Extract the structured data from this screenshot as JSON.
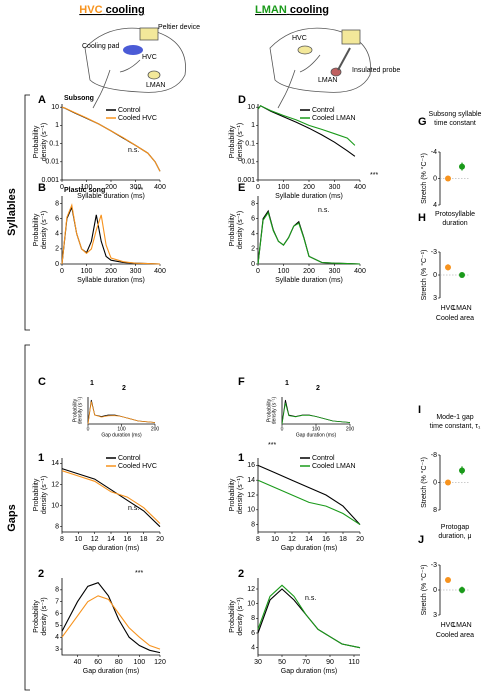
{
  "header": {
    "hvc_title": {
      "area": "HVC",
      "word": "cooling"
    },
    "lman_title": {
      "area": "LMAN",
      "word": "cooling"
    }
  },
  "diagrams": {
    "left": [
      "Cooling pad",
      "Peltier device",
      "HVC",
      "LMAN"
    ],
    "right": [
      "HVC",
      "LMAN",
      "Insulated probe"
    ]
  },
  "sections": [
    "Syllables",
    "Gaps"
  ],
  "chart_data": [
    {
      "type": "line",
      "panel_label": "A",
      "title": "Subsong",
      "xlabel": "Syllable duration (ms)",
      "ylabel": [
        "Probability",
        "density (s⁻¹)"
      ],
      "log_y": true,
      "x": [
        0,
        10,
        50,
        100,
        150,
        200,
        250,
        300,
        350,
        380,
        400
      ],
      "series": [
        {
          "name": "Control",
          "color": "#000000",
          "values": [
            10,
            9,
            5,
            2.5,
            1.2,
            0.5,
            0.2,
            0.08,
            0.03,
            0.01,
            0.003
          ]
        },
        {
          "name": "Cooled HVC",
          "color": "#f7931e",
          "values": [
            10,
            9.2,
            5.2,
            2.6,
            1.2,
            0.5,
            0.21,
            0.08,
            0.03,
            0.01,
            0.003
          ]
        }
      ],
      "xlim": [
        0,
        400
      ],
      "ylim": [
        0.001,
        15
      ],
      "xticks": [
        0,
        100,
        200,
        300,
        400
      ],
      "yticks": [
        10,
        1,
        0.1,
        0.01,
        0.001
      ],
      "annotations": [
        "n.s."
      ]
    },
    {
      "type": "line",
      "panel_label": "B",
      "title": "Plastic song",
      "xlabel": "Syllable duration (ms)",
      "ylabel": [
        "Probability",
        "density (s⁻¹)"
      ],
      "x": [
        0,
        20,
        40,
        60,
        80,
        100,
        120,
        140,
        160,
        180,
        200,
        250,
        300,
        350,
        400
      ],
      "series": [
        {
          "color": "#000000",
          "values": [
            0,
            6,
            7.5,
            4,
            2,
            1.5,
            3,
            6.5,
            3,
            1,
            0.5,
            0.2,
            0.1,
            0.05,
            0
          ]
        },
        {
          "color": "#f7931e",
          "values": [
            0,
            6.2,
            7.8,
            4,
            2,
            1.4,
            2,
            4.5,
            6.5,
            2.5,
            0.8,
            0.3,
            0.1,
            0.05,
            0
          ]
        }
      ],
      "xlim": [
        0,
        400
      ],
      "ylim": [
        0,
        9
      ],
      "xticks": [
        0,
        100,
        200,
        300,
        400
      ],
      "yticks": [
        0,
        2,
        4,
        6,
        8
      ],
      "annotations": [
        "***"
      ]
    },
    {
      "type": "line",
      "panel_label": "D",
      "xlabel": "Syllable duration (ms)",
      "ylabel": [
        "Probability",
        "density (s⁻¹)"
      ],
      "log_y": true,
      "x": [
        0,
        10,
        50,
        100,
        150,
        200,
        250,
        300,
        350,
        380
      ],
      "series": [
        {
          "name": "Control",
          "color": "#000000",
          "values": [
            8,
            12,
            6,
            3,
            1.5,
            0.7,
            0.3,
            0.12,
            0.04,
            0.02
          ]
        },
        {
          "name": "Cooled LMAN",
          "color": "#1a9a1a",
          "values": [
            8,
            12,
            6.5,
            3.5,
            2,
            1,
            0.6,
            0.35,
            0.2,
            0.08
          ]
        }
      ],
      "xlim": [
        0,
        400
      ],
      "ylim": [
        0.001,
        15
      ],
      "xticks": [
        0,
        100,
        200,
        300,
        400
      ],
      "yticks": [
        10,
        1,
        0.1,
        0.01,
        0.001
      ],
      "annotations": [
        "***"
      ]
    },
    {
      "type": "line",
      "panel_label": "E",
      "xlabel": "Syllable duration (ms)",
      "ylabel": [
        "Probability",
        "density (s⁻¹)"
      ],
      "x": [
        0,
        20,
        40,
        60,
        80,
        100,
        120,
        140,
        160,
        180,
        200,
        250,
        300,
        350,
        400
      ],
      "series": [
        {
          "color": "#000000",
          "values": [
            0,
            6,
            7,
            4.5,
            3,
            2.5,
            3.5,
            5,
            5.6,
            3.5,
            1,
            0.2,
            0.1,
            0.05,
            0
          ]
        },
        {
          "color": "#1a9a1a",
          "values": [
            0,
            5.8,
            6.8,
            4.4,
            3,
            2.5,
            3.5,
            5,
            5.4,
            3.4,
            1,
            0.2,
            0.1,
            0.05,
            0
          ]
        }
      ],
      "xlim": [
        0,
        400
      ],
      "ylim": [
        0,
        9
      ],
      "xticks": [
        0,
        100,
        200,
        300,
        400
      ],
      "yticks": [
        0,
        2,
        4,
        6,
        8
      ],
      "annotations": [
        "n.s."
      ]
    },
    {
      "type": "strip",
      "panel_label": "G",
      "title": [
        "Subsong syllable",
        "time constant"
      ],
      "ylabel": "Stretch (% °C⁻¹)",
      "categories": [
        null,
        null
      ],
      "colors": [
        "#f7931e",
        "#1a9a1a"
      ],
      "values": [
        0,
        -1.8
      ],
      "errors": [
        0.2,
        0.6
      ],
      "ylim": [
        4,
        -4
      ],
      "yticks": [
        -4,
        0,
        4
      ]
    },
    {
      "type": "strip",
      "panel_label": "H",
      "title": [
        "Protosyllable",
        "duration"
      ],
      "ylabel": "Stretch (% °C⁻¹)",
      "xlabel": "Cooled area",
      "categories": [
        "HVC",
        "LMAN"
      ],
      "colors": [
        "#f7931e",
        "#1a9a1a"
      ],
      "values": [
        -1.0,
        0
      ],
      "errors": [
        0.4,
        0.15
      ],
      "ylim": [
        3,
        -3
      ],
      "yticks": [
        -3,
        0,
        3
      ]
    },
    {
      "type": "line",
      "panel_label": "C",
      "xlabel": "Gap duration (ms)",
      "ylabel": [
        "Probability",
        "density (s⁻¹)"
      ],
      "inset": true,
      "x": [
        0,
        10,
        20,
        40,
        60,
        80,
        100,
        150,
        200
      ],
      "series": [
        {
          "color": "#000000",
          "values": [
            0,
            8,
            3,
            2.5,
            3,
            3,
            2.5,
            1,
            0.5
          ]
        },
        {
          "color": "#f7931e",
          "values": [
            0,
            7.5,
            3,
            2.3,
            2.7,
            2.8,
            2.5,
            1,
            0.5
          ]
        }
      ],
      "xlim": [
        0,
        200
      ],
      "ylim": [
        0,
        9
      ],
      "xticks": [
        0,
        100,
        200
      ],
      "yticks": [],
      "annotations": [
        "1",
        "2"
      ]
    },
    {
      "type": "line",
      "panel_label": "1",
      "xlabel": "Gap duration (ms)",
      "ylabel": [
        "Probability",
        "density (s⁻¹)"
      ],
      "x": [
        8,
        10,
        12,
        14,
        16,
        18,
        20
      ],
      "series": [
        {
          "name": "Control",
          "color": "#000000",
          "values": [
            13.5,
            13,
            12.5,
            11.5,
            10.5,
            9.5,
            8
          ]
        },
        {
          "name": "Cooled HVC",
          "color": "#f7931e",
          "values": [
            13.3,
            12.8,
            12.3,
            11.3,
            10.8,
            9.8,
            8.3
          ]
        }
      ],
      "xlim": [
        8,
        20
      ],
      "ylim": [
        7.5,
        14.5
      ],
      "xticks": [
        8,
        10,
        12,
        14,
        16,
        18,
        20
      ],
      "yticks": [
        8,
        10,
        12,
        14
      ],
      "annotations": [
        "n.s."
      ]
    },
    {
      "type": "line",
      "panel_label": "2",
      "xlabel": "Gap duration (ms)",
      "ylabel": [
        "Probability",
        "density (s⁻¹)"
      ],
      "x": [
        25,
        40,
        50,
        60,
        70,
        80,
        90,
        100,
        110,
        120
      ],
      "series": [
        {
          "color": "#000000",
          "values": [
            4.5,
            7,
            8.3,
            8.6,
            7.5,
            5.5,
            4,
            3.3,
            2.9,
            2.7
          ]
        },
        {
          "color": "#f7931e",
          "values": [
            4,
            5.8,
            7,
            7.5,
            7.2,
            6,
            4.8,
            4,
            3.3,
            3
          ]
        }
      ],
      "xlim": [
        25,
        120
      ],
      "ylim": [
        2.5,
        9
      ],
      "xticks": [
        40,
        60,
        80,
        100,
        120
      ],
      "yticks": [
        3,
        4,
        5,
        6,
        7,
        8
      ],
      "annotations": [
        "***"
      ]
    },
    {
      "type": "line",
      "panel_label": "F",
      "xlabel": "Gap duration (ms)",
      "ylabel": [
        "Probability",
        "density (s⁻¹)"
      ],
      "inset": true,
      "x": [
        0,
        10,
        20,
        40,
        60,
        80,
        100,
        150,
        200
      ],
      "series": [
        {
          "color": "#000000",
          "values": [
            0,
            8,
            3,
            2.5,
            3,
            3,
            2.5,
            1,
            0.5
          ]
        },
        {
          "color": "#1a9a1a",
          "values": [
            0,
            7,
            2.8,
            2.4,
            2.9,
            2.9,
            2.5,
            1,
            0.5
          ]
        }
      ],
      "xlim": [
        0,
        200
      ],
      "ylim": [
        0,
        9
      ],
      "xticks": [
        0,
        100,
        200
      ],
      "yticks": [],
      "annotations": [
        "1",
        "2"
      ]
    },
    {
      "type": "line",
      "panel_label": "1",
      "xlabel": "Gap duration (ms)",
      "ylabel": [
        "Probability",
        "density (s⁻¹)"
      ],
      "x": [
        8,
        10,
        12,
        14,
        16,
        18,
        20
      ],
      "series": [
        {
          "name": "Control",
          "color": "#000000",
          "values": [
            16,
            15,
            14,
            13,
            12,
            10.5,
            8
          ]
        },
        {
          "name": "Cooled LMAN",
          "color": "#1a9a1a",
          "values": [
            14,
            13,
            12,
            11,
            10.5,
            9.5,
            8
          ]
        }
      ],
      "xlim": [
        8,
        20
      ],
      "ylim": [
        7,
        17
      ],
      "xticks": [
        8,
        10,
        12,
        14,
        16,
        18,
        20
      ],
      "yticks": [
        8,
        10,
        12,
        14,
        16
      ],
      "annotations": [
        "***"
      ]
    },
    {
      "type": "line",
      "panel_label": "2",
      "xlabel": "Gap duration (ms)",
      "ylabel": [
        "Probability",
        "density (s⁻¹)"
      ],
      "x": [
        30,
        40,
        50,
        60,
        70,
        80,
        90,
        100,
        115
      ],
      "series": [
        {
          "color": "#000000",
          "values": [
            6,
            10.5,
            12,
            10.5,
            8.5,
            6.5,
            5.5,
            4.5,
            4
          ]
        },
        {
          "color": "#1a9a1a",
          "values": [
            6.5,
            11,
            12.5,
            11,
            8.5,
            6.5,
            5.5,
            4.5,
            4
          ]
        }
      ],
      "xlim": [
        30,
        115
      ],
      "ylim": [
        3,
        13.5
      ],
      "xticks": [
        30,
        50,
        70,
        90,
        110
      ],
      "yticks": [
        4,
        6,
        8,
        10,
        12
      ],
      "annotations": [
        "n.s."
      ]
    },
    {
      "type": "strip",
      "panel_label": "I",
      "title": [
        "Mode-1 gap",
        "time constant, τ₁"
      ],
      "ylabel": "Stretch (% °C⁻¹)",
      "categories": [
        null,
        null
      ],
      "colors": [
        "#f7931e",
        "#1a9a1a"
      ],
      "values": [
        0,
        -3.5
      ],
      "errors": [
        0.4,
        1.2
      ],
      "ylim": [
        8,
        -8
      ],
      "yticks": [
        -8,
        0,
        8
      ]
    },
    {
      "type": "strip",
      "panel_label": "J",
      "title": [
        "Protogap",
        "duration, μ"
      ],
      "ylabel": "Stretch (% °C⁻¹)",
      "xlabel": "Cooled area",
      "categories": [
        "HVC",
        "LMAN"
      ],
      "colors": [
        "#f7931e",
        "#1a9a1a"
      ],
      "values": [
        -1.2,
        0
      ],
      "errors": [
        0.3,
        0.4
      ],
      "ylim": [
        3,
        -3
      ],
      "yticks": [
        -3,
        0,
        3
      ]
    }
  ]
}
